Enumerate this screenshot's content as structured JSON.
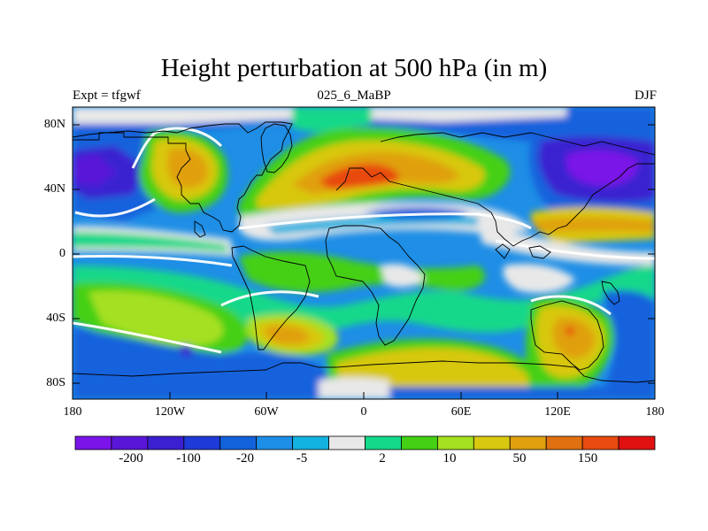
{
  "title": "Height perturbation at 500 hPa (in m)",
  "subtitle_left": "Expt = tfgwf",
  "subtitle_center": "025_6_MaBP",
  "subtitle_right": "DJF",
  "y_ticks": [
    "80N",
    "40N",
    "0",
    "40S",
    "80S"
  ],
  "x_ticks": [
    "180",
    "120W",
    "60W",
    "0",
    "60E",
    "120E",
    "180"
  ],
  "colorbar": {
    "colors": [
      "#7a14e8",
      "#5a16d8",
      "#3a20d0",
      "#1e3ad8",
      "#1262dc",
      "#1e8ee6",
      "#14b2e0",
      "#e8e8e8",
      "#14d88a",
      "#44d014",
      "#a6e020",
      "#d8c810",
      "#e0a010",
      "#e07010",
      "#e84a10",
      "#e01010"
    ],
    "labels": [
      "-200",
      "-100",
      "-20",
      "-5",
      "2",
      "10",
      "50",
      "150"
    ]
  },
  "legend_colors": {
    "strong_negative": "#4a1ad8",
    "negative": "#1e4ad8",
    "weak_negative": "#1ea0e6",
    "neutral": "#e8e8e8",
    "weak_positive": "#14d88a",
    "positive": "#a6e020",
    "strong_positive": "#e0a010",
    "extreme_positive": "#e84a10"
  }
}
